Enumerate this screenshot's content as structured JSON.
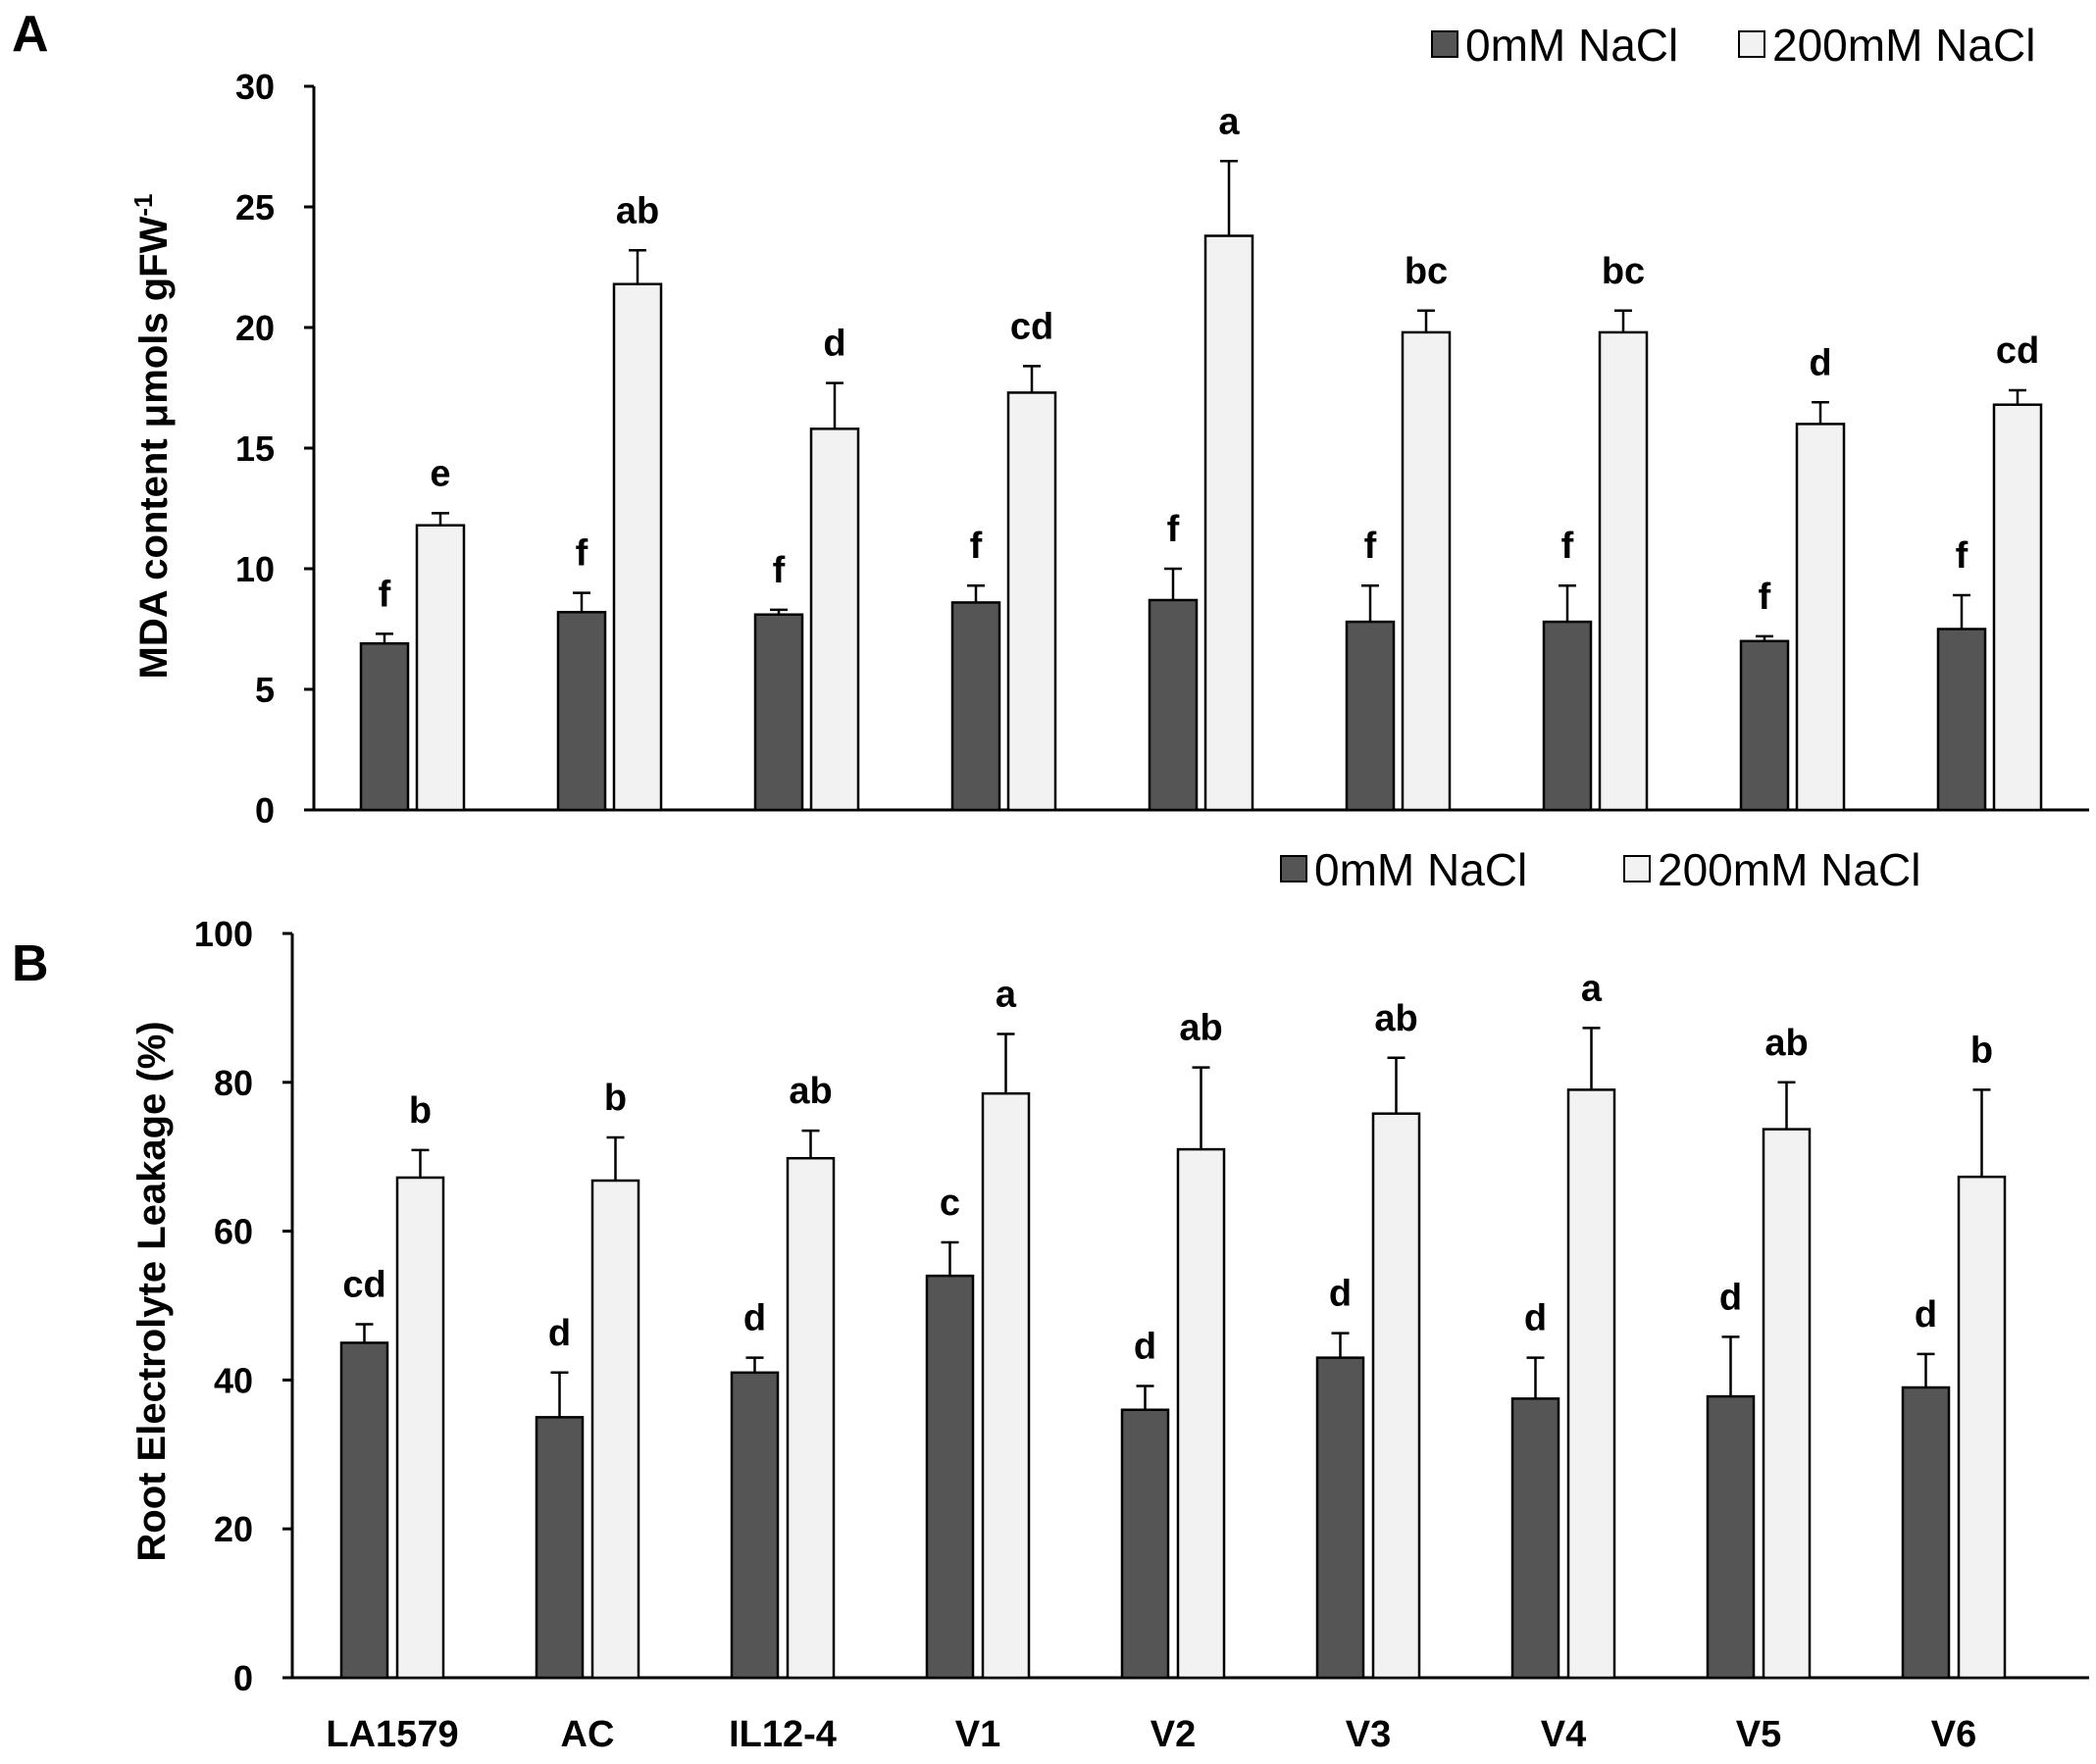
{
  "chart_data": [
    {
      "panel": "A",
      "type": "bar",
      "ylabel": "MDA content μmols gFW",
      "ylabel_superscript": "-1",
      "ylim": [
        0,
        30
      ],
      "yticks": [
        0,
        5,
        10,
        15,
        20,
        25,
        30
      ],
      "legend_position": "top-right",
      "categories": [
        "LA1579",
        "AC",
        "IL12-4",
        "V1",
        "V2",
        "V3",
        "V4",
        "V5",
        "V6"
      ],
      "series": [
        {
          "name": "0mM NaCl",
          "color": "#555555",
          "values": [
            6.9,
            8.2,
            8.1,
            8.6,
            8.7,
            7.8,
            7.8,
            7.0,
            7.5
          ],
          "errors": [
            0.4,
            0.8,
            0.2,
            0.7,
            1.3,
            1.5,
            1.5,
            0.2,
            1.4
          ],
          "letters": [
            "f",
            "f",
            "f",
            "f",
            "f",
            "f",
            "f",
            "f",
            "f"
          ]
        },
        {
          "name": "200mM NaCl",
          "color": "#f2f2f2",
          "values": [
            11.8,
            21.8,
            15.8,
            17.3,
            23.8,
            19.8,
            19.8,
            16.0,
            16.8
          ],
          "errors": [
            0.5,
            1.4,
            1.9,
            1.1,
            3.1,
            0.9,
            0.9,
            0.9,
            0.6
          ],
          "letters": [
            "e",
            "ab",
            "d",
            "cd",
            "a",
            "bc",
            "bc",
            "d",
            "cd"
          ]
        }
      ]
    },
    {
      "panel": "B",
      "type": "bar",
      "ylabel": "Root Electrolyte Leakage (%)",
      "ylim": [
        0,
        100
      ],
      "yticks": [
        0,
        20,
        40,
        60,
        80,
        100
      ],
      "legend_position": "top-right",
      "categories": [
        "LA1579",
        "AC",
        "IL12-4",
        "V1",
        "V2",
        "V3",
        "V4",
        "V5",
        "V6"
      ],
      "series": [
        {
          "name": "0mM NaCl",
          "color": "#555555",
          "values": [
            45,
            35,
            41,
            54,
            36,
            43,
            37.5,
            37.8,
            39
          ],
          "errors": [
            2.5,
            6,
            2,
            4.5,
            3.2,
            3.3,
            5.5,
            8,
            4.5
          ],
          "letters": [
            "cd",
            "d",
            "d",
            "c",
            "d",
            "d",
            "d",
            "d",
            "d"
          ]
        },
        {
          "name": "200mM NaCl",
          "color": "#f2f2f2",
          "values": [
            67.2,
            66.8,
            69.8,
            78.5,
            71,
            75.8,
            79,
            73.7,
            67.3
          ],
          "errors": [
            3.7,
            5.8,
            3.7,
            8,
            11,
            7.5,
            8.3,
            6.3,
            11.7
          ],
          "letters": [
            "b",
            "b",
            "ab",
            "a",
            "ab",
            "ab",
            "a",
            "ab",
            "b"
          ]
        }
      ]
    }
  ]
}
